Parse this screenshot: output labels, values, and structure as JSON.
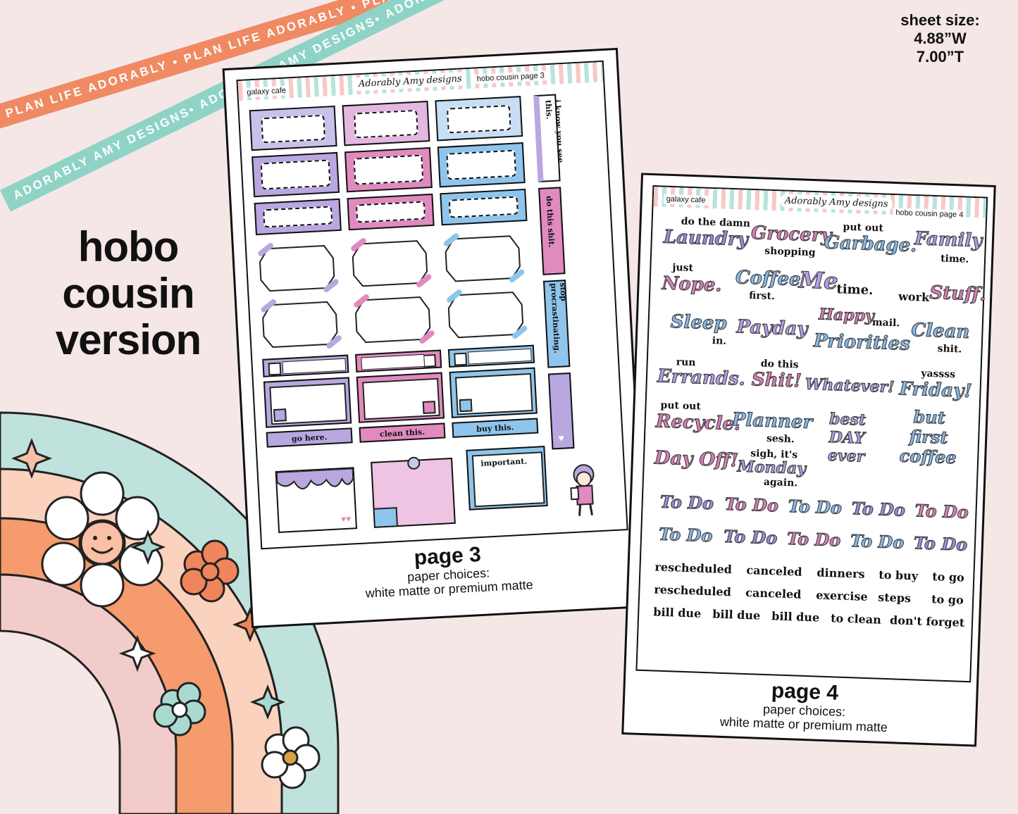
{
  "ribbons": [
    {
      "text": "PLAN LIFE ADORABLY • PLAN LIFE ADORABLY • PLAN LIFE ADORABLY",
      "color": "#f08a63"
    },
    {
      "text": "ADORABLY AMY DESIGNS• ADORABLY AMY DESIGNS• ADORABLY AMY DESIGNS•",
      "color": "#8fd3c7"
    }
  ],
  "headline": [
    "hobo",
    "cousin",
    "version"
  ],
  "sheet_size": {
    "label": "sheet size:",
    "width": "4.88”W",
    "height": "7.00”T"
  },
  "page3": {
    "theme": "galaxy cafe",
    "logo": "Adorably Amy designs",
    "title": "hobo cousin page 3",
    "caption": "page 3",
    "paper": "paper choices:",
    "paper_types": "white matte or premium matte",
    "side_labels": [
      "i know you see this.",
      "do this shit.",
      "stop procrastinating."
    ],
    "strip_labels": [
      "go here.",
      "clean this.",
      "buy this."
    ],
    "note_label": "important."
  },
  "page4": {
    "theme": "galaxy cafe",
    "logo": "Adorably Amy designs",
    "title": "hobo cousin page 4",
    "caption": "page 4",
    "paper": "paper choices:",
    "paper_types": "white matte or premium matte",
    "script": {
      "do_the_damn": "do the damn",
      "laundry": "Laundry",
      "grocery": "Grocery",
      "shopping": "shopping",
      "put_out": "put out",
      "garbage": "Garbage.",
      "family": "Family",
      "time": "time.",
      "just": "just",
      "nope": "Nope.",
      "coffee": "Coffee",
      "first": "first.",
      "me": "Me",
      "me_time": "time.",
      "work": "work",
      "stuff": "Stuff.",
      "sleep": "Sleep",
      "in": "in.",
      "payday": "Payday",
      "happy": "Happy",
      "mail": "mail.",
      "priorities": "Priorities",
      "clean": "Clean",
      "shit": "shit.",
      "run": "run",
      "errands": "Errands.",
      "do_this": "do this",
      "shit2": "Shit!",
      "whatever": "Whatever!",
      "yassss": "yassss",
      "friday": "Friday!",
      "put_out2": "put out",
      "recycle": "Recycle.",
      "planner": "Planner",
      "sesh": "sesh.",
      "best_day": "best DAY ever",
      "but_first": "but first coffee",
      "day_off": "Day Off!",
      "sigh": "sigh, it's",
      "monday": "Monday",
      "again": "again.",
      "todo": "To Do"
    },
    "small_row1": [
      "rescheduled",
      "canceled",
      "dinners",
      "to buy",
      "to go"
    ],
    "small_row2": [
      "rescheduled",
      "canceled",
      "exercise",
      "steps",
      "to go"
    ],
    "small_row3": [
      "bill due",
      "bill due",
      "bill due",
      "to clean",
      "don't forget"
    ]
  },
  "colors": {
    "purple": "#b9a7e0",
    "pink": "#e08abf",
    "blue": "#8fc5ec",
    "rainbow": [
      "#bfe3dc",
      "#f9c0a6",
      "#f59b6e",
      "#f0cccc"
    ]
  }
}
